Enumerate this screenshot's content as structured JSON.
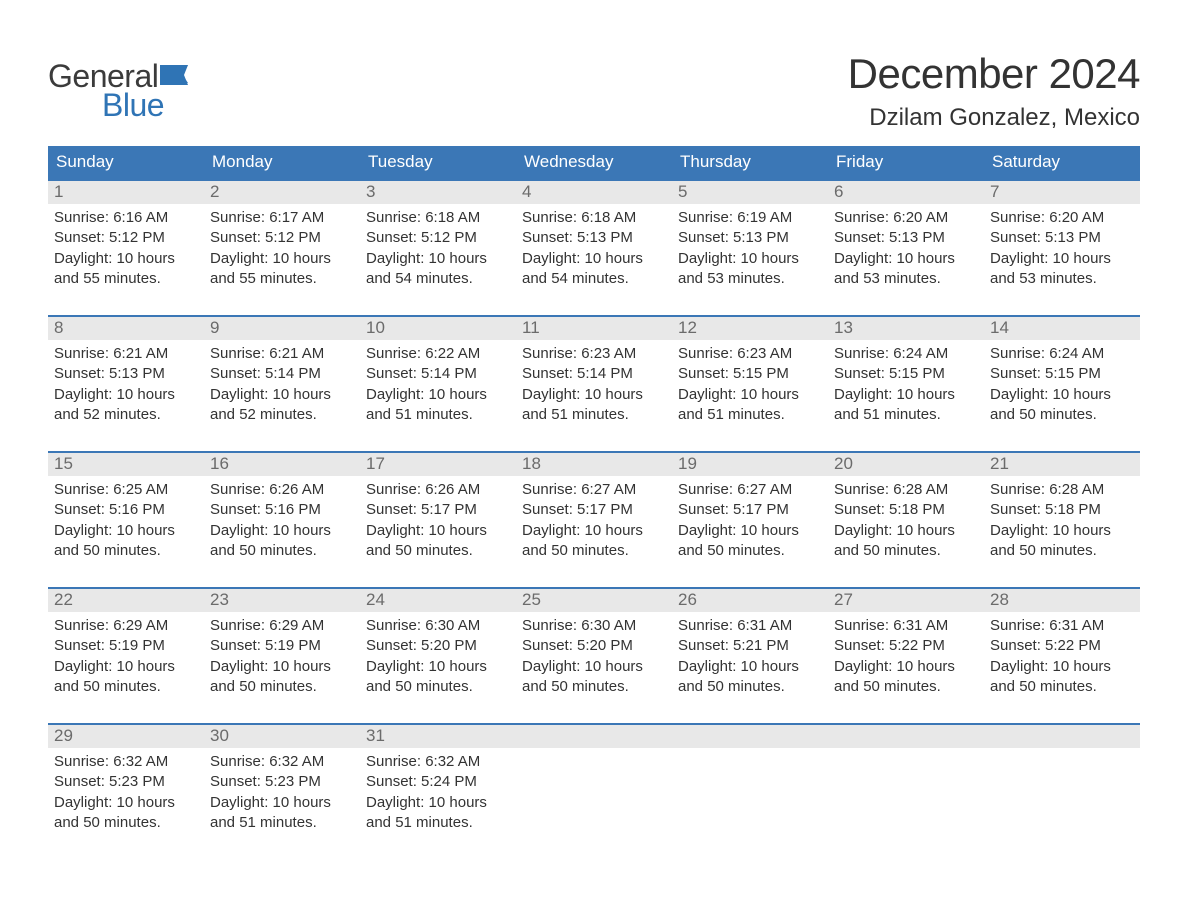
{
  "logo": {
    "text_general": "General",
    "text_blue": "Blue",
    "flag_color": "#2f74b5"
  },
  "title": "December 2024",
  "location": "Dzilam Gonzalez, Mexico",
  "colors": {
    "header_bg": "#3b77b6",
    "header_text": "#ffffff",
    "day_number_bg": "#e8e8e8",
    "day_number_text": "#6b6b6b",
    "body_text": "#333333",
    "week_border": "#3b77b6",
    "background": "#ffffff",
    "logo_gray": "#3b3b3b",
    "logo_blue": "#2f74b5"
  },
  "typography": {
    "title_fontsize": 42,
    "location_fontsize": 24,
    "header_fontsize": 17,
    "daynum_fontsize": 17,
    "content_fontsize": 15,
    "logo_fontsize": 32
  },
  "day_names": [
    "Sunday",
    "Monday",
    "Tuesday",
    "Wednesday",
    "Thursday",
    "Friday",
    "Saturday"
  ],
  "weeks": [
    [
      {
        "day": 1,
        "sunrise": "6:16 AM",
        "sunset": "5:12 PM",
        "daylight": "10 hours and 55 minutes."
      },
      {
        "day": 2,
        "sunrise": "6:17 AM",
        "sunset": "5:12 PM",
        "daylight": "10 hours and 55 minutes."
      },
      {
        "day": 3,
        "sunrise": "6:18 AM",
        "sunset": "5:12 PM",
        "daylight": "10 hours and 54 minutes."
      },
      {
        "day": 4,
        "sunrise": "6:18 AM",
        "sunset": "5:13 PM",
        "daylight": "10 hours and 54 minutes."
      },
      {
        "day": 5,
        "sunrise": "6:19 AM",
        "sunset": "5:13 PM",
        "daylight": "10 hours and 53 minutes."
      },
      {
        "day": 6,
        "sunrise": "6:20 AM",
        "sunset": "5:13 PM",
        "daylight": "10 hours and 53 minutes."
      },
      {
        "day": 7,
        "sunrise": "6:20 AM",
        "sunset": "5:13 PM",
        "daylight": "10 hours and 53 minutes."
      }
    ],
    [
      {
        "day": 8,
        "sunrise": "6:21 AM",
        "sunset": "5:13 PM",
        "daylight": "10 hours and 52 minutes."
      },
      {
        "day": 9,
        "sunrise": "6:21 AM",
        "sunset": "5:14 PM",
        "daylight": "10 hours and 52 minutes."
      },
      {
        "day": 10,
        "sunrise": "6:22 AM",
        "sunset": "5:14 PM",
        "daylight": "10 hours and 51 minutes."
      },
      {
        "day": 11,
        "sunrise": "6:23 AM",
        "sunset": "5:14 PM",
        "daylight": "10 hours and 51 minutes."
      },
      {
        "day": 12,
        "sunrise": "6:23 AM",
        "sunset": "5:15 PM",
        "daylight": "10 hours and 51 minutes."
      },
      {
        "day": 13,
        "sunrise": "6:24 AM",
        "sunset": "5:15 PM",
        "daylight": "10 hours and 51 minutes."
      },
      {
        "day": 14,
        "sunrise": "6:24 AM",
        "sunset": "5:15 PM",
        "daylight": "10 hours and 50 minutes."
      }
    ],
    [
      {
        "day": 15,
        "sunrise": "6:25 AM",
        "sunset": "5:16 PM",
        "daylight": "10 hours and 50 minutes."
      },
      {
        "day": 16,
        "sunrise": "6:26 AM",
        "sunset": "5:16 PM",
        "daylight": "10 hours and 50 minutes."
      },
      {
        "day": 17,
        "sunrise": "6:26 AM",
        "sunset": "5:17 PM",
        "daylight": "10 hours and 50 minutes."
      },
      {
        "day": 18,
        "sunrise": "6:27 AM",
        "sunset": "5:17 PM",
        "daylight": "10 hours and 50 minutes."
      },
      {
        "day": 19,
        "sunrise": "6:27 AM",
        "sunset": "5:17 PM",
        "daylight": "10 hours and 50 minutes."
      },
      {
        "day": 20,
        "sunrise": "6:28 AM",
        "sunset": "5:18 PM",
        "daylight": "10 hours and 50 minutes."
      },
      {
        "day": 21,
        "sunrise": "6:28 AM",
        "sunset": "5:18 PM",
        "daylight": "10 hours and 50 minutes."
      }
    ],
    [
      {
        "day": 22,
        "sunrise": "6:29 AM",
        "sunset": "5:19 PM",
        "daylight": "10 hours and 50 minutes."
      },
      {
        "day": 23,
        "sunrise": "6:29 AM",
        "sunset": "5:19 PM",
        "daylight": "10 hours and 50 minutes."
      },
      {
        "day": 24,
        "sunrise": "6:30 AM",
        "sunset": "5:20 PM",
        "daylight": "10 hours and 50 minutes."
      },
      {
        "day": 25,
        "sunrise": "6:30 AM",
        "sunset": "5:20 PM",
        "daylight": "10 hours and 50 minutes."
      },
      {
        "day": 26,
        "sunrise": "6:31 AM",
        "sunset": "5:21 PM",
        "daylight": "10 hours and 50 minutes."
      },
      {
        "day": 27,
        "sunrise": "6:31 AM",
        "sunset": "5:22 PM",
        "daylight": "10 hours and 50 minutes."
      },
      {
        "day": 28,
        "sunrise": "6:31 AM",
        "sunset": "5:22 PM",
        "daylight": "10 hours and 50 minutes."
      }
    ],
    [
      {
        "day": 29,
        "sunrise": "6:32 AM",
        "sunset": "5:23 PM",
        "daylight": "10 hours and 50 minutes."
      },
      {
        "day": 30,
        "sunrise": "6:32 AM",
        "sunset": "5:23 PM",
        "daylight": "10 hours and 51 minutes."
      },
      {
        "day": 31,
        "sunrise": "6:32 AM",
        "sunset": "5:24 PM",
        "daylight": "10 hours and 51 minutes."
      },
      null,
      null,
      null,
      null
    ]
  ],
  "labels": {
    "sunrise_prefix": "Sunrise: ",
    "sunset_prefix": "Sunset: ",
    "daylight_prefix": "Daylight: "
  }
}
